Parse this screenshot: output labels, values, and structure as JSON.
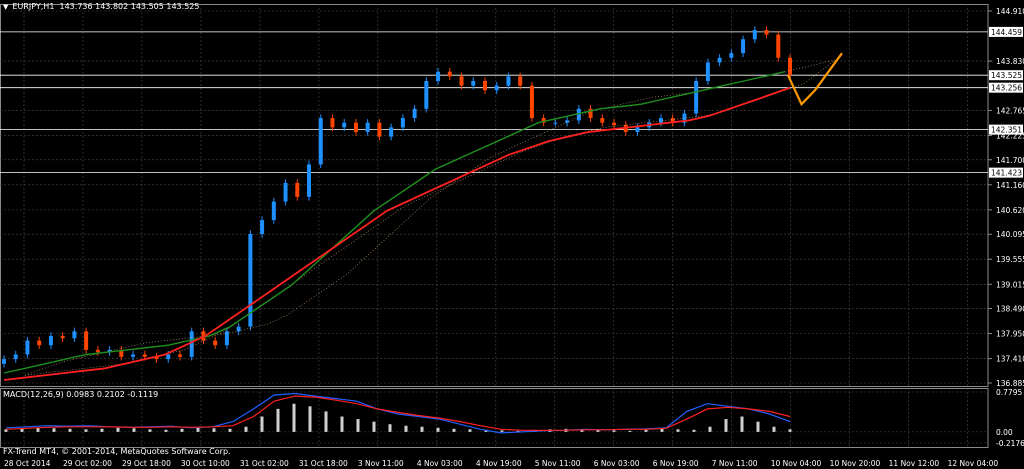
{
  "chart_title": {
    "symbol": "EURJPY,H1",
    "ohlc": "143.736 143.802 143.505 143.525"
  },
  "indicator_label": "MACD(12,26,9) 0.0983 0.2102 -0.1119",
  "copyright": "FX-Trend MT4, © 2001-2014, MetaQuotes Software Corp.",
  "colors": {
    "background": "#000000",
    "grid": "#4a4a4a",
    "candle_up": "#1e90ff",
    "candle_down": "#ff4500",
    "ma_slow": "#ff2020",
    "ma_fast": "#1f8f1f",
    "ma_mid": "#2bb52b",
    "ichimoku_cloud": "#f5c08a",
    "forecast": "#ff9900",
    "macd_line": "#2060ff",
    "signal_line": "#ff2020",
    "histogram": "#d0d0d0",
    "level_line": "#ffffff"
  },
  "chart_data": [
    {
      "type": "line",
      "title": "EURJPY,H1",
      "x_tick_labels": [
        "28 Oct 2014",
        "29 Oct 02:00",
        "29 Oct 18:00",
        "30 Oct 10:00",
        "31 Oct 02:00",
        "31 Oct 18:00",
        "3 Nov 11:00",
        "4 Nov 03:00",
        "4 Nov 19:00",
        "5 Nov 11:00",
        "6 Nov 03:00",
        "6 Nov 19:00",
        "7 Nov 11:00",
        "10 Nov 04:00",
        "10 Nov 20:00",
        "11 Nov 12:00",
        "12 Nov 04:00"
      ],
      "y_ticks": [
        144.91,
        143.83,
        142.765,
        142.225,
        141.7,
        141.16,
        140.62,
        140.095,
        139.555,
        139.015,
        138.49,
        137.95,
        137.41,
        136.885
      ],
      "price_levels": [
        144.459,
        143.525,
        143.256,
        142.351,
        141.423
      ],
      "ylim": [
        136.885,
        144.91
      ],
      "series": [
        {
          "values": [
            137.4,
            137.5,
            137.8,
            137.7,
            137.9,
            137.85,
            138.0,
            137.6,
            137.55,
            137.6,
            137.45,
            137.5,
            137.45,
            137.4,
            137.5,
            137.45,
            138.0,
            137.8,
            137.7,
            138.0,
            138.1,
            140.1,
            140.4,
            140.8,
            141.2,
            140.9,
            141.6,
            142.6,
            142.4,
            142.5,
            142.3,
            142.5,
            142.2,
            142.4,
            142.6,
            142.8,
            143.4,
            143.6,
            143.5,
            143.3,
            143.4,
            143.2,
            143.3,
            143.5,
            143.3,
            142.6,
            142.5,
            142.5,
            142.55,
            142.8,
            142.6,
            142.5,
            142.45,
            142.3,
            142.4,
            142.5,
            142.6,
            142.5,
            142.7,
            143.4,
            143.8,
            143.9,
            144.0,
            144.3,
            144.5,
            144.4,
            143.9,
            143.525
          ]
        },
        {
          "values": [
            137.1,
            137.2,
            137.3,
            137.4,
            137.5,
            137.55,
            137.6,
            137.65,
            137.7,
            137.8,
            137.9,
            138.1,
            138.4,
            138.7,
            139.0,
            139.4,
            139.8,
            140.2,
            140.6,
            140.9,
            141.2,
            141.5,
            141.7,
            141.9,
            142.1,
            142.3,
            142.5,
            142.6,
            142.7,
            142.8,
            142.85,
            142.9,
            143.0,
            143.1,
            143.2,
            143.3,
            143.4,
            143.5,
            143.6
          ]
        },
        {
          "values": [
            136.95,
            137.0,
            137.05,
            137.1,
            137.15,
            137.2,
            137.3,
            137.4,
            137.5,
            137.7,
            137.9,
            138.2,
            138.5,
            138.8,
            139.1,
            139.4,
            139.7,
            140.0,
            140.3,
            140.6,
            140.8,
            141.0,
            141.2,
            141.4,
            141.6,
            141.8,
            141.95,
            142.1,
            142.2,
            142.3,
            142.35,
            142.4,
            142.45,
            142.5,
            142.55,
            142.65,
            142.8,
            142.95,
            143.1,
            143.256
          ]
        },
        {
          "values": [
            143.525,
            142.9,
            143.2,
            143.6,
            144.0
          ]
        }
      ]
    },
    {
      "type": "bar",
      "title": "MACD(12,26,9)",
      "y_ticks": [
        0.7795,
        0.0,
        -0.2176
      ],
      "ylim": [
        -0.2176,
        0.7795
      ],
      "series": [
        {
          "values": [
            0.05,
            0.06,
            0.08,
            0.07,
            0.06,
            0.05,
            0.06,
            0.08,
            0.07,
            0.05,
            0.04,
            0.06,
            0.08,
            0.07,
            0.06,
            0.1,
            0.3,
            0.45,
            0.55,
            0.5,
            0.4,
            0.3,
            0.25,
            0.2,
            0.15,
            0.12,
            0.1,
            0.08,
            0.06,
            0.05,
            0.04,
            0.03,
            0.02,
            0.03,
            0.05,
            0.06,
            0.05,
            0.04,
            0.03,
            0.02,
            0.04,
            0.06,
            0.05,
            0.04,
            0.1,
            0.25,
            0.3,
            0.2,
            0.1,
            0.05
          ]
        },
        {
          "values": [
            0.08,
            0.1,
            0.12,
            0.11,
            0.12,
            0.1,
            0.09,
            0.1,
            0.11,
            0.08,
            0.1,
            0.2,
            0.45,
            0.72,
            0.75,
            0.7,
            0.65,
            0.6,
            0.45,
            0.35,
            0.3,
            0.25,
            0.15,
            0.05,
            -0.02,
            0.0,
            0.02,
            0.03,
            0.05,
            0.04,
            0.05,
            0.06,
            0.08,
            0.4,
            0.55,
            0.5,
            0.45,
            0.35,
            0.2
          ]
        },
        {
          "values": [
            0.05,
            0.07,
            0.09,
            0.1,
            0.1,
            0.1,
            0.09,
            0.09,
            0.1,
            0.09,
            0.1,
            0.12,
            0.3,
            0.6,
            0.7,
            0.68,
            0.62,
            0.55,
            0.45,
            0.38,
            0.32,
            0.27,
            0.2,
            0.12,
            0.05,
            0.03,
            0.03,
            0.03,
            0.04,
            0.04,
            0.05,
            0.05,
            0.07,
            0.25,
            0.45,
            0.48,
            0.45,
            0.4,
            0.3
          ]
        }
      ]
    }
  ]
}
